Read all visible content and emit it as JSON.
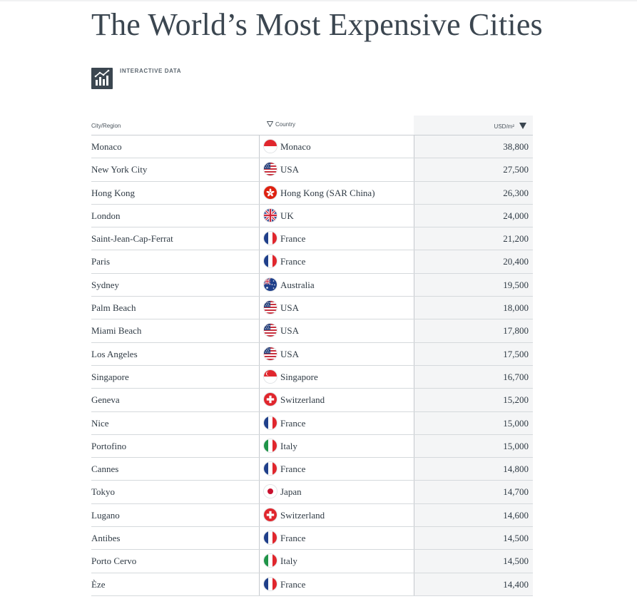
{
  "title": "The World’s Most Expensive Cities",
  "badge": {
    "icon": "bar-chart-icon",
    "label": "INTERACTIVE DATA"
  },
  "table": {
    "headers": {
      "city": "City/Region",
      "country": "Country",
      "usd": "USD/m²"
    },
    "rows": [
      {
        "city": "Monaco",
        "country": "Monaco",
        "flag": "monaco",
        "usd": "38,800"
      },
      {
        "city": "New York City",
        "country": "USA",
        "flag": "usa",
        "usd": "27,500"
      },
      {
        "city": "Hong Kong",
        "country": "Hong Kong (SAR China)",
        "flag": "hongkong",
        "usd": "26,300"
      },
      {
        "city": "London",
        "country": "UK",
        "flag": "uk",
        "usd": "24,000"
      },
      {
        "city": "Saint-Jean-Cap-Ferrat",
        "country": "France",
        "flag": "france",
        "usd": "21,200"
      },
      {
        "city": "Paris",
        "country": "France",
        "flag": "france",
        "usd": "20,400"
      },
      {
        "city": "Sydney",
        "country": "Australia",
        "flag": "australia",
        "usd": "19,500"
      },
      {
        "city": "Palm Beach",
        "country": "USA",
        "flag": "usa",
        "usd": "18,000"
      },
      {
        "city": "Miami Beach",
        "country": "USA",
        "flag": "usa",
        "usd": "17,800"
      },
      {
        "city": "Los Angeles",
        "country": "USA",
        "flag": "usa",
        "usd": "17,500"
      },
      {
        "city": "Singapore",
        "country": "Singapore",
        "flag": "singapore",
        "usd": "16,700"
      },
      {
        "city": "Geneva",
        "country": "Switzerland",
        "flag": "switzerland",
        "usd": "15,200"
      },
      {
        "city": "Nice",
        "country": "France",
        "flag": "france",
        "usd": "15,000"
      },
      {
        "city": "Portofino",
        "country": "Italy",
        "flag": "italy",
        "usd": "15,000"
      },
      {
        "city": "Cannes",
        "country": "France",
        "flag": "france",
        "usd": "14,800"
      },
      {
        "city": "Tokyo",
        "country": "Japan",
        "flag": "japan",
        "usd": "14,700"
      },
      {
        "city": "Lugano",
        "country": "Switzerland",
        "flag": "switzerland",
        "usd": "14,600"
      },
      {
        "city": "Antibes",
        "country": "France",
        "flag": "france",
        "usd": "14,500"
      },
      {
        "city": "Porto Cervo",
        "country": "Italy",
        "flag": "italy",
        "usd": "14,500"
      },
      {
        "city": "Èze",
        "country": "France",
        "flag": "france",
        "usd": "14,400"
      }
    ]
  }
}
